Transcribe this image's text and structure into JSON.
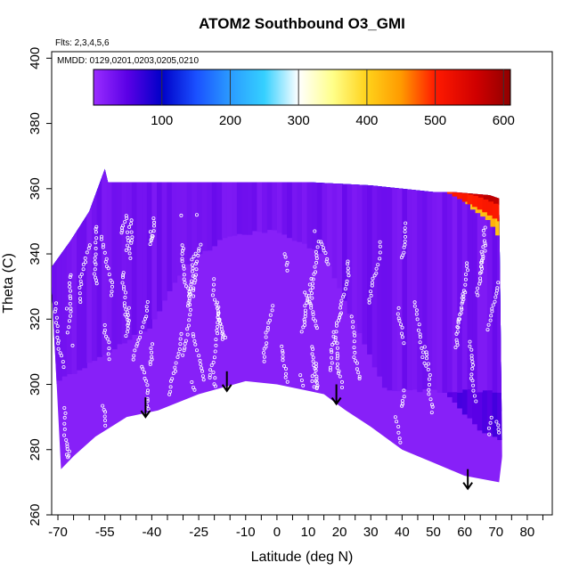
{
  "chart_data": {
    "type": "heatmap",
    "title": "ATOM2 Southbound O3_GMI",
    "flights_note": "Flts: 2,3,4,5,6",
    "dates_note": "MMDD: 0129,0201,0203,0205,0210",
    "xlabel": "Latitude (deg N)",
    "ylabel": "Theta (C)",
    "xlim": [
      -72,
      88
    ],
    "ylim": [
      260,
      402
    ],
    "x_ticks": [
      -70,
      -55,
      -40,
      -25,
      -10,
      0,
      10,
      20,
      30,
      40,
      50,
      60,
      70,
      80
    ],
    "x_minor_ticks": [
      -65,
      -60,
      -50,
      -45,
      -35,
      -30,
      -20,
      -15,
      -5,
      5,
      15,
      25,
      35,
      45,
      55,
      65,
      75,
      85
    ],
    "y_ticks": [
      260,
      280,
      300,
      320,
      340,
      360,
      380,
      400
    ],
    "colorbar": {
      "range": [
        0,
        610
      ],
      "ticks": [
        100,
        200,
        300,
        400,
        500,
        600
      ],
      "stops": [
        {
          "v": 0,
          "c": "#9a2dff"
        },
        {
          "v": 50,
          "c": "#5a00e6"
        },
        {
          "v": 100,
          "c": "#0000c8"
        },
        {
          "v": 150,
          "c": "#1a50ff"
        },
        {
          "v": 200,
          "c": "#2a9bff"
        },
        {
          "v": 250,
          "c": "#35d0ff"
        },
        {
          "v": 300,
          "c": "#ffffff"
        },
        {
          "v": 350,
          "c": "#ffff8a"
        },
        {
          "v": 400,
          "c": "#ffd21a"
        },
        {
          "v": 450,
          "c": "#ff9a00"
        },
        {
          "v": 500,
          "c": "#ff1a00"
        },
        {
          "v": 560,
          "c": "#d00000"
        },
        {
          "v": 610,
          "c": "#900000"
        }
      ]
    },
    "top_boundary": [
      [
        -72,
        336
      ],
      [
        -66,
        344
      ],
      [
        -60,
        353
      ],
      [
        -55,
        366
      ],
      [
        -54,
        362
      ],
      [
        10,
        362
      ],
      [
        30,
        361
      ],
      [
        50,
        359
      ],
      [
        56,
        359
      ],
      [
        68,
        358
      ],
      [
        71,
        357
      ]
    ],
    "bottom_boundary": [
      [
        -72,
        330
      ],
      [
        -69,
        274
      ],
      [
        -65,
        278
      ],
      [
        -58,
        284
      ],
      [
        -48,
        290
      ],
      [
        -38,
        292
      ],
      [
        -25,
        297
      ],
      [
        -10,
        301
      ],
      [
        0,
        300
      ],
      [
        10,
        298
      ],
      [
        15,
        297
      ],
      [
        22,
        292
      ],
      [
        30,
        287
      ],
      [
        40,
        280
      ],
      [
        50,
        276
      ],
      [
        60,
        272
      ],
      [
        71,
        270
      ],
      [
        72,
        278
      ]
    ],
    "surface_layers": [
      {
        "value": 320,
        "lat": [
          -56,
          -40,
          -20,
          0,
          20,
          30,
          40,
          50,
          56,
          60,
          66,
          71
        ],
        "theta": [
          364,
          364,
          364,
          364,
          364,
          363,
          363,
          362,
          360,
          354,
          346,
          340
        ]
      },
      {
        "value": 250,
        "lat": [
          -60,
          -56,
          -40,
          -20,
          0,
          20,
          34,
          44,
          50,
          56,
          62,
          68,
          72
        ],
        "theta": [
          346,
          361,
          361,
          361,
          361,
          361,
          359,
          356,
          350,
          344,
          338,
          332,
          326
        ]
      },
      {
        "value": 200,
        "lat": [
          -70,
          -60,
          -55,
          -40,
          -20,
          0,
          20,
          30,
          40,
          48,
          56,
          62,
          68,
          72
        ],
        "theta": [
          320,
          332,
          359,
          359,
          359,
          359,
          358,
          355,
          350,
          340,
          334,
          326,
          318,
          312
        ]
      },
      {
        "value": 140,
        "lat": [
          -72,
          -62,
          -55,
          -45,
          -30,
          -15,
          0,
          15,
          30,
          40,
          50,
          60,
          68,
          72
        ],
        "theta": [
          326,
          328,
          354,
          355,
          355,
          355,
          355,
          354,
          350,
          340,
          330,
          318,
          306,
          300
        ]
      },
      {
        "value": 90,
        "lat": [
          -72,
          -62,
          -55,
          -45,
          -30,
          -15,
          0,
          15,
          30,
          40,
          50,
          60,
          68,
          72
        ],
        "theta": [
          320,
          324,
          332,
          344,
          350,
          352,
          352,
          350,
          344,
          330,
          318,
          306,
          296,
          290
        ]
      },
      {
        "value": 55,
        "lat": [
          -72,
          -62,
          -50,
          -40,
          -30,
          -15,
          0,
          15,
          25,
          35,
          45,
          55,
          65,
          72
        ],
        "theta": [
          310,
          314,
          322,
          328,
          342,
          348,
          348,
          344,
          330,
          316,
          306,
          296,
          286,
          282
        ]
      },
      {
        "value": 30,
        "lat": [
          -72,
          -62,
          -50,
          -40,
          -30,
          -15,
          0,
          15,
          25,
          35
        ],
        "theta": [
          300,
          305,
          312,
          318,
          336,
          346,
          347,
          340,
          318,
          298
        ]
      }
    ],
    "top_hot_layers": [
      {
        "value": 420,
        "lat": [
          -55,
          -30,
          -10,
          5,
          20,
          40,
          52,
          58,
          62,
          68,
          71
        ],
        "theta": [
          367,
          367,
          366,
          366,
          365,
          363,
          362,
          359,
          354,
          350,
          345
        ]
      },
      {
        "value": 500,
        "lat": [
          0,
          20,
          40,
          54,
          60,
          66,
          71
        ],
        "theta": [
          368,
          366,
          363,
          359,
          356,
          353,
          350
        ]
      },
      {
        "value": 570,
        "lat": [
          58,
          63,
          66,
          71
        ],
        "theta": [
          359,
          358,
          357,
          355
        ]
      }
    ],
    "arrows": [
      {
        "lat": -42,
        "theta": 290
      },
      {
        "lat": -16,
        "theta": 298
      },
      {
        "lat": 19,
        "theta": 294
      },
      {
        "lat": 61,
        "theta": 268
      }
    ],
    "observation_points": {
      "count": 720,
      "lat_range": [
        -72,
        71
      ],
      "theta_range": [
        272,
        352
      ],
      "color": "#ffffff"
    }
  }
}
